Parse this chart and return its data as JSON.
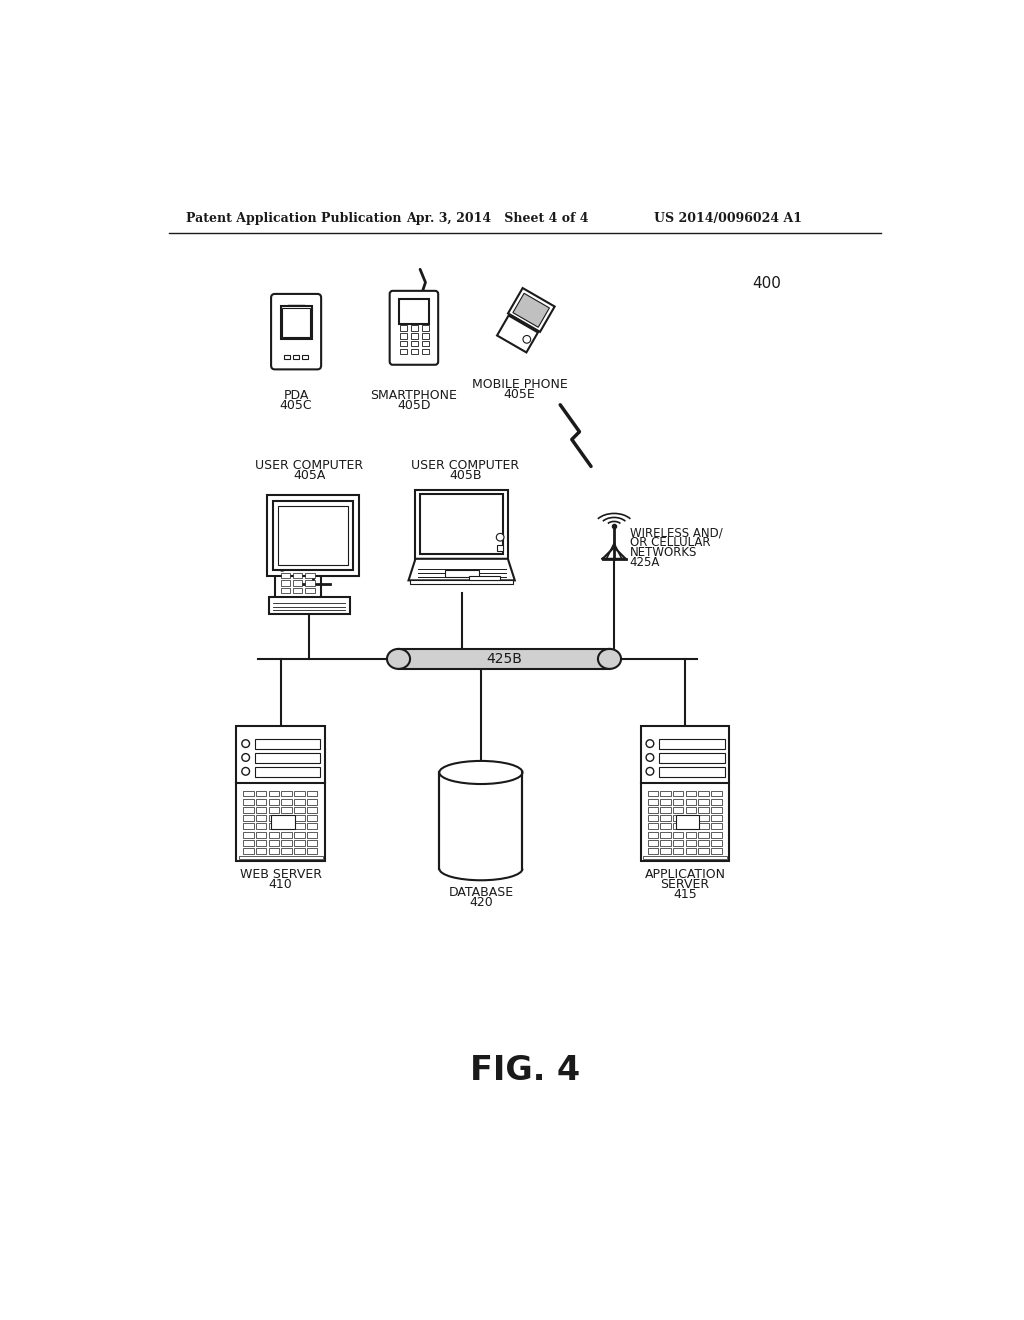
{
  "header_left": "Patent Application Publication",
  "header_mid": "Apr. 3, 2014   Sheet 4 of 4",
  "header_right": "US 2014/0096024 A1",
  "fig_label": "FIG. 4",
  "ref_400": "400",
  "labels": {
    "pda": [
      "PDA",
      "405C"
    ],
    "smartphone": [
      "SMARTPHONE",
      "405D"
    ],
    "mobile_phone": [
      "MOBILE PHONE",
      "405E"
    ],
    "user_computer_a": [
      "USER COMPUTER",
      "405A"
    ],
    "user_computer_b": [
      "USER COMPUTER",
      "405B"
    ],
    "wireless": [
      "WIRELESS AND/",
      "OR CELLULAR",
      "NETWORKS",
      "425A"
    ],
    "network_bus": "425B",
    "web_server": [
      "WEB SERVER",
      "410"
    ],
    "database": [
      "DATABASE",
      "420"
    ],
    "app_server": [
      "APPLICATION",
      "SERVER",
      "415"
    ]
  },
  "bg_color": "#ffffff",
  "line_color": "#1a1a1a",
  "text_color": "#1a1a1a"
}
